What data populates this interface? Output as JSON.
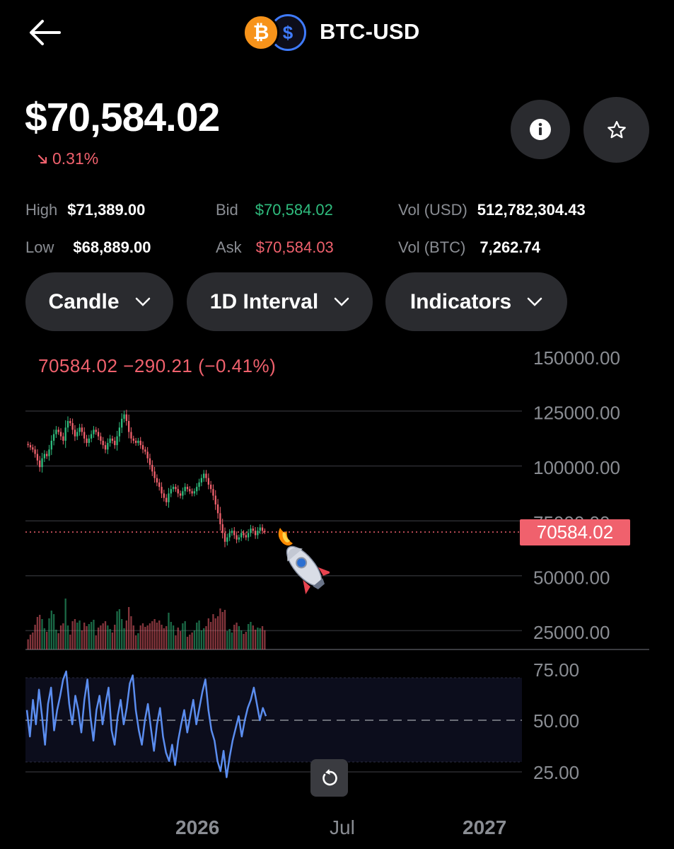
{
  "header": {
    "title": "BTC-USD",
    "base_icon": "bitcoin-icon",
    "quote_icon": "usd-coin-icon",
    "base_glyph": "₿",
    "quote_glyph": "$"
  },
  "price": "$70,584.02",
  "change": "0.31%",
  "stats": {
    "high_label": "High",
    "high": "$71,389.00",
    "low_label": "Low",
    "low": "$68,889.00",
    "bid_label": "Bid",
    "bid": "$70,584.02",
    "ask_label": "Ask",
    "ask": "$70,584.03",
    "vol_usd_label": "Vol (USD)",
    "vol_usd": "512,782,304.43",
    "vol_btc_label": "Vol (BTC)",
    "vol_btc": "7,262.74"
  },
  "controls": {
    "chart_type": "Candle",
    "interval": "1D Interval",
    "indicators": "Indicators"
  },
  "colors": {
    "up": "#2fbd7e",
    "down": "#f0616d",
    "rsi": "#5b8def"
  },
  "chart_data": {
    "type": "candlestick",
    "legend": "70584.02  −290.21 (−0.41%)",
    "last_price": "70584.02",
    "price_axis_ticks": [
      "150000.00",
      "125000.00",
      "100000.00",
      "75000.00",
      "50000.00",
      "25000.00"
    ],
    "ylim": [
      25000,
      150000
    ],
    "rsi_axis_ticks": [
      "75.00",
      "50.00",
      "25.00"
    ],
    "rsi_ylim": [
      25,
      75
    ],
    "x_tick_labels": [
      "2026",
      "Jul",
      "2027"
    ],
    "price_series": [
      110000,
      109000,
      108000,
      106000,
      103000,
      100000,
      104000,
      106000,
      105000,
      108000,
      112000,
      115000,
      117000,
      116000,
      114000,
      112000,
      118000,
      121000,
      120000,
      117000,
      114000,
      116000,
      118000,
      116000,
      113000,
      111000,
      113000,
      115000,
      117000,
      116000,
      114000,
      112000,
      110000,
      108000,
      111000,
      113000,
      112000,
      110000,
      114000,
      118000,
      122000,
      124000,
      121000,
      116000,
      113000,
      112000,
      111000,
      112000,
      110000,
      108000,
      107000,
      104000,
      101000,
      98000,
      95000,
      93000,
      91000,
      88000,
      86000,
      84000,
      88000,
      90000,
      91000,
      90000,
      88000,
      87000,
      89000,
      91000,
      90000,
      89000,
      88000,
      89000,
      91000,
      93000,
      95000,
      97000,
      95000,
      92000,
      90000,
      87000,
      83000,
      79000,
      74000,
      70000,
      66000,
      68000,
      70000,
      71000,
      69000,
      67000,
      68000,
      70000,
      69000,
      68000,
      70000,
      72000,
      71000,
      69000,
      71000,
      72500,
      71000,
      70584
    ],
    "rsi_series": [
      55,
      42,
      60,
      48,
      65,
      52,
      38,
      58,
      66,
      45,
      55,
      62,
      70,
      74,
      58,
      48,
      62,
      55,
      44,
      60,
      70,
      52,
      40,
      55,
      62,
      48,
      58,
      66,
      45,
      38,
      52,
      60,
      48,
      56,
      68,
      72,
      55,
      45,
      38,
      50,
      58,
      46,
      35,
      48,
      56,
      42,
      34,
      30,
      38,
      28,
      40,
      48,
      55,
      44,
      52,
      60,
      48,
      56,
      64,
      70,
      55,
      45,
      40,
      30,
      25,
      35,
      22,
      32,
      40,
      46,
      52,
      42,
      50,
      56,
      60,
      66,
      58,
      50,
      56,
      52
    ]
  }
}
